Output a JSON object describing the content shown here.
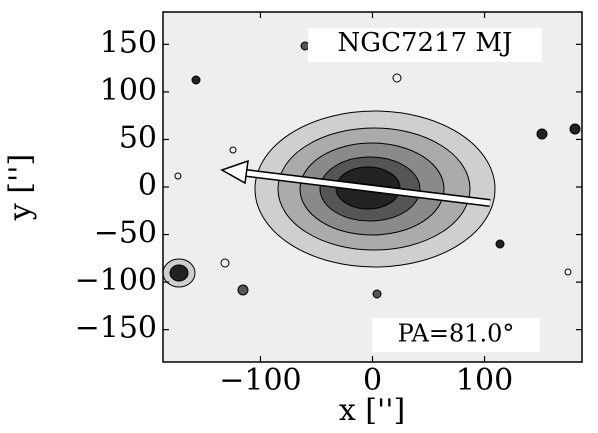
{
  "chart_data": {
    "type": "contour",
    "title": "NGC7217 MJ",
    "annotation": "PA=81.0°",
    "x_label": "x ['']",
    "y_label": "y ['']",
    "xlim": [
      -187,
      187
    ],
    "ylim": [
      -184,
      184
    ],
    "xticks": [
      {
        "value": -100,
        "label": "−100"
      },
      0,
      100
    ],
    "yticks": [
      {
        "value": -150,
        "label": "−150"
      },
      {
        "value": -100,
        "label": "−100"
      },
      {
        "value": -50,
        "label": "−50"
      },
      0,
      50,
      100,
      150
    ]
  }
}
